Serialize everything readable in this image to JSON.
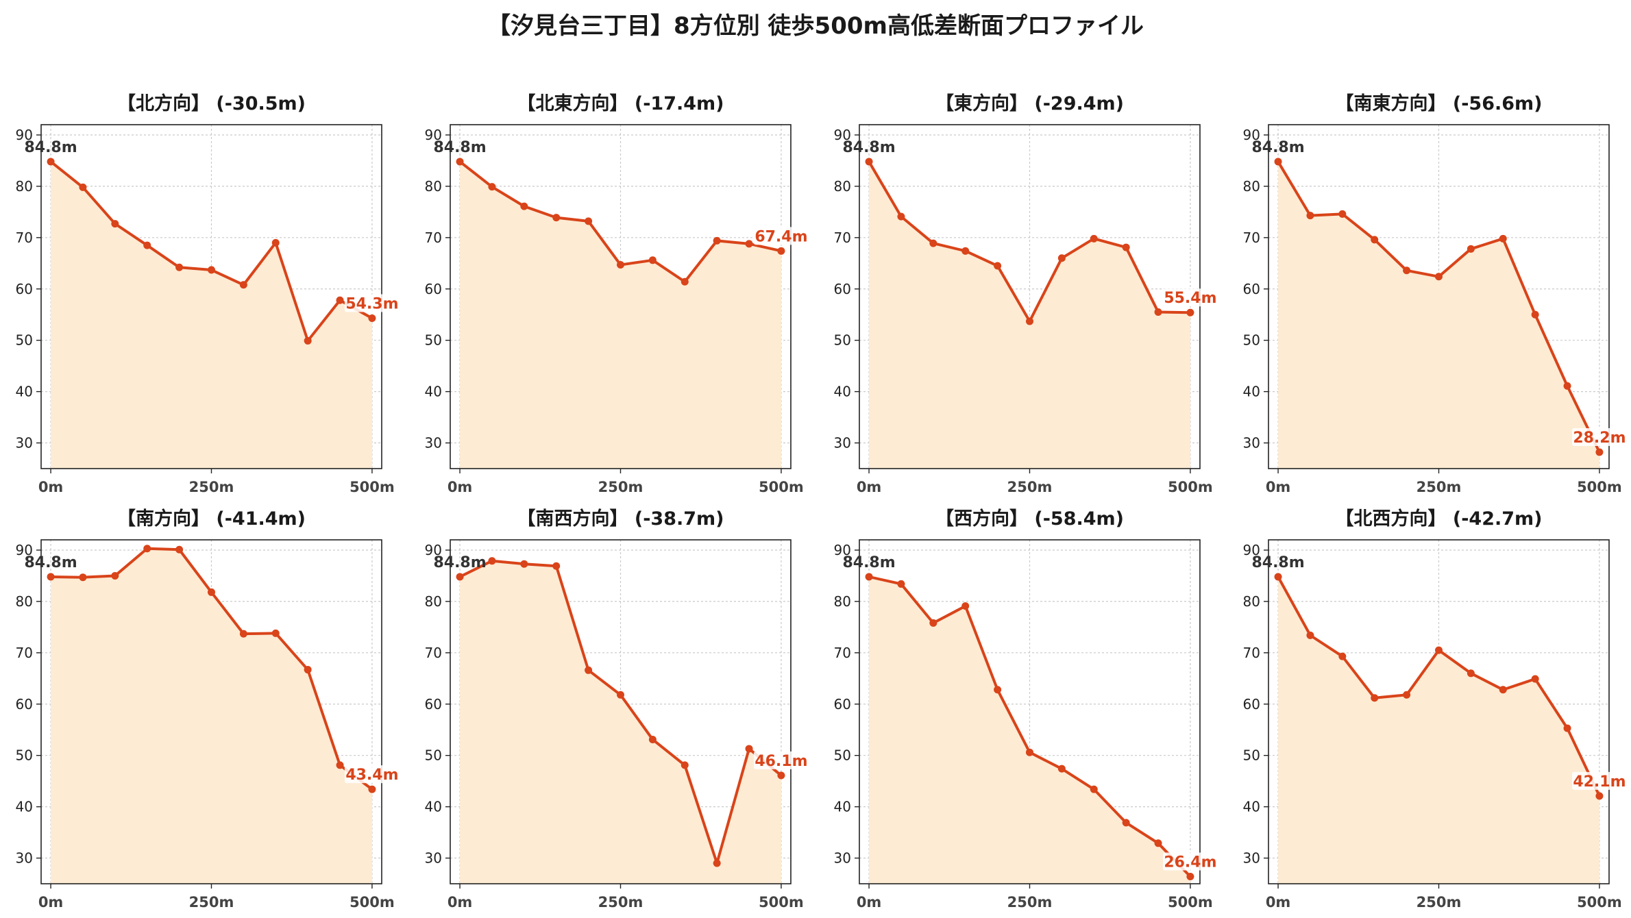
{
  "title": "【汐見台三丁目】8方位別 徒歩500m高低差断面プロファイル",
  "colors": {
    "line": "#d9441a",
    "fill": "#fdebd3",
    "grid": "#c9c9c9",
    "start_label": "#333333",
    "end_label": "#d9441a"
  },
  "chart_data": [
    {
      "type": "area",
      "title": "【北方向】 (-30.5m)",
      "x": [
        0,
        50,
        100,
        150,
        200,
        250,
        300,
        350,
        400,
        450,
        500
      ],
      "values": [
        84.8,
        79.8,
        72.7,
        68.5,
        64.2,
        63.7,
        60.8,
        69.0,
        49.9,
        57.8,
        54.3
      ],
      "x_ticks": [
        "0m",
        "250m",
        "500m"
      ],
      "y_ticks": [
        "30",
        "40",
        "50",
        "60",
        "70",
        "80",
        "90"
      ],
      "ylim": [
        25,
        92
      ],
      "start_label": "84.8m",
      "end_label": "54.3m",
      "grid": true
    },
    {
      "type": "area",
      "title": "【北東方向】 (-17.4m)",
      "x": [
        0,
        50,
        100,
        150,
        200,
        250,
        300,
        350,
        400,
        450,
        500
      ],
      "values": [
        84.8,
        79.9,
        76.1,
        73.9,
        73.2,
        64.7,
        65.6,
        61.4,
        69.4,
        68.8,
        67.4
      ],
      "x_ticks": [
        "0m",
        "250m",
        "500m"
      ],
      "y_ticks": [
        "30",
        "40",
        "50",
        "60",
        "70",
        "80",
        "90"
      ],
      "ylim": [
        25,
        92
      ],
      "start_label": "84.8m",
      "end_label": "67.4m",
      "grid": true
    },
    {
      "type": "area",
      "title": "【東方向】 (-29.4m)",
      "x": [
        0,
        50,
        100,
        150,
        200,
        250,
        300,
        350,
        400,
        450,
        500
      ],
      "values": [
        84.8,
        74.1,
        68.9,
        67.4,
        64.5,
        53.7,
        66.0,
        69.8,
        68.1,
        55.5,
        55.4
      ],
      "x_ticks": [
        "0m",
        "250m",
        "500m"
      ],
      "y_ticks": [
        "30",
        "40",
        "50",
        "60",
        "70",
        "80",
        "90"
      ],
      "ylim": [
        25,
        92
      ],
      "start_label": "84.8m",
      "end_label": "55.4m",
      "grid": true
    },
    {
      "type": "area",
      "title": "【南東方向】 (-56.6m)",
      "x": [
        0,
        50,
        100,
        150,
        200,
        250,
        300,
        350,
        400,
        450,
        500
      ],
      "values": [
        84.8,
        74.3,
        74.6,
        69.6,
        63.6,
        62.4,
        67.8,
        69.8,
        55.0,
        41.1,
        28.2
      ],
      "x_ticks": [
        "0m",
        "250m",
        "500m"
      ],
      "y_ticks": [
        "30",
        "40",
        "50",
        "60",
        "70",
        "80",
        "90"
      ],
      "ylim": [
        25,
        92
      ],
      "start_label": "84.8m",
      "end_label": "28.2m",
      "grid": true
    },
    {
      "type": "area",
      "title": "【南方向】 (-41.4m)",
      "x": [
        0,
        50,
        100,
        150,
        200,
        250,
        300,
        350,
        400,
        450,
        500
      ],
      "values": [
        84.8,
        84.7,
        85.0,
        90.3,
        90.1,
        81.8,
        73.7,
        73.8,
        66.7,
        48.1,
        43.4
      ],
      "x_ticks": [
        "0m",
        "250m",
        "500m"
      ],
      "y_ticks": [
        "30",
        "40",
        "50",
        "60",
        "70",
        "80",
        "90"
      ],
      "ylim": [
        25,
        92
      ],
      "start_label": "84.8m",
      "end_label": "43.4m",
      "grid": true
    },
    {
      "type": "area",
      "title": "【南西方向】 (-38.7m)",
      "x": [
        0,
        50,
        100,
        150,
        200,
        250,
        300,
        350,
        400,
        450,
        500
      ],
      "values": [
        84.8,
        87.9,
        87.3,
        86.9,
        66.6,
        61.8,
        53.1,
        48.1,
        29.0,
        51.3,
        46.1
      ],
      "x_ticks": [
        "0m",
        "250m",
        "500m"
      ],
      "y_ticks": [
        "30",
        "40",
        "50",
        "60",
        "70",
        "80",
        "90"
      ],
      "ylim": [
        25,
        92
      ],
      "start_label": "84.8m",
      "end_label": "46.1m",
      "grid": true
    },
    {
      "type": "area",
      "title": "【西方向】 (-58.4m)",
      "x": [
        0,
        50,
        100,
        150,
        200,
        250,
        300,
        350,
        400,
        450,
        500
      ],
      "values": [
        84.8,
        83.4,
        75.8,
        79.1,
        62.8,
        50.6,
        47.4,
        43.4,
        36.9,
        32.9,
        26.4
      ],
      "x_ticks": [
        "0m",
        "250m",
        "500m"
      ],
      "y_ticks": [
        "30",
        "40",
        "50",
        "60",
        "70",
        "80",
        "90"
      ],
      "ylim": [
        25,
        92
      ],
      "start_label": "84.8m",
      "end_label": "26.4m",
      "grid": true
    },
    {
      "type": "area",
      "title": "【北西方向】 (-42.7m)",
      "x": [
        0,
        50,
        100,
        150,
        200,
        250,
        300,
        350,
        400,
        450,
        500
      ],
      "values": [
        84.8,
        73.4,
        69.3,
        61.2,
        61.8,
        70.5,
        66.0,
        62.8,
        64.9,
        55.3,
        42.1
      ],
      "x_ticks": [
        "0m",
        "250m",
        "500m"
      ],
      "y_ticks": [
        "30",
        "40",
        "50",
        "60",
        "70",
        "80",
        "90"
      ],
      "ylim": [
        25,
        92
      ],
      "start_label": "84.8m",
      "end_label": "42.1m",
      "grid": true
    }
  ]
}
